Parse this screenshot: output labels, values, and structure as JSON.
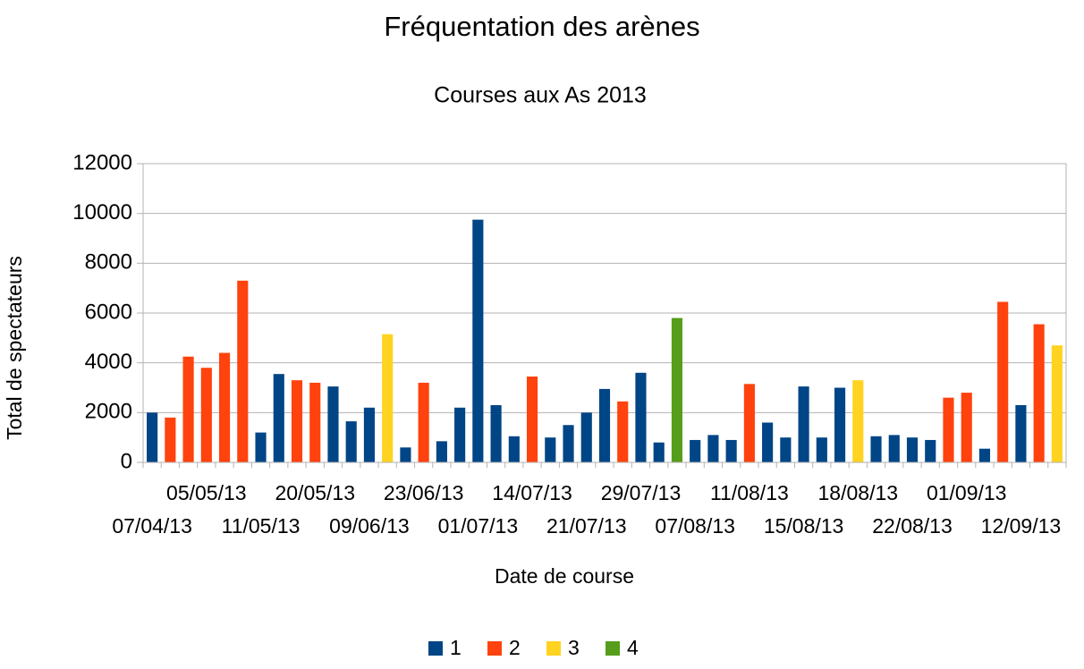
{
  "chart_data": {
    "type": "bar",
    "title": "Fréquentation des arènes",
    "subtitle": "Courses aux As 2013",
    "x_label": "Date de course",
    "y_label": "Total de spectateurs",
    "categories": [
      "07/04/13",
      null,
      null,
      "05/05/13",
      null,
      null,
      "11/05/13",
      null,
      null,
      "20/05/13",
      null,
      null,
      "09/06/13",
      null,
      null,
      "23/06/13",
      null,
      null,
      "01/07/13",
      null,
      null,
      "14/07/13",
      null,
      null,
      "21/07/13",
      null,
      null,
      "29/07/13",
      null,
      null,
      "07/08/13",
      null,
      null,
      "11/08/13",
      null,
      null,
      "15/08/13",
      null,
      null,
      "18/08/13",
      null,
      null,
      "22/08/13",
      null,
      null,
      "01/09/13",
      null,
      null,
      "12/09/13",
      null,
      null
    ],
    "series": [
      {
        "name": "1",
        "color": "#004586",
        "values": [
          2000,
          null,
          null,
          null,
          null,
          null,
          1200,
          3550,
          null,
          null,
          3050,
          1650,
          2200,
          null,
          600,
          null,
          850,
          2200,
          9750,
          2300,
          1050,
          null,
          1000,
          1500,
          2000,
          2950,
          null,
          3600,
          800,
          null,
          900,
          1100,
          900,
          null,
          1600,
          1000,
          3050,
          1000,
          3000,
          null,
          1050,
          1100,
          1000,
          900,
          null,
          null,
          550,
          null,
          2300,
          null,
          null
        ]
      },
      {
        "name": "2",
        "color": "#ff420e",
        "values": [
          null,
          1800,
          4250,
          3800,
          4400,
          7300,
          null,
          null,
          3300,
          3200,
          null,
          null,
          null,
          null,
          null,
          3200,
          null,
          null,
          null,
          null,
          null,
          3450,
          null,
          null,
          null,
          null,
          2450,
          null,
          null,
          null,
          null,
          null,
          null,
          3150,
          null,
          null,
          null,
          null,
          null,
          null,
          null,
          null,
          null,
          null,
          2600,
          2800,
          null,
          6450,
          null,
          5550,
          null
        ]
      },
      {
        "name": "3",
        "color": "#ffd320",
        "values": [
          null,
          null,
          null,
          null,
          null,
          null,
          null,
          null,
          null,
          null,
          null,
          null,
          null,
          5150,
          null,
          null,
          null,
          null,
          null,
          null,
          null,
          null,
          null,
          null,
          null,
          null,
          null,
          null,
          null,
          null,
          null,
          null,
          null,
          null,
          null,
          null,
          null,
          null,
          null,
          3300,
          null,
          null,
          null,
          null,
          null,
          null,
          null,
          null,
          null,
          null,
          4700
        ]
      },
      {
        "name": "4",
        "color": "#579d1c",
        "values": [
          null,
          null,
          null,
          null,
          null,
          null,
          null,
          null,
          null,
          null,
          null,
          null,
          null,
          null,
          null,
          null,
          null,
          null,
          null,
          null,
          null,
          null,
          null,
          null,
          null,
          null,
          null,
          null,
          null,
          5800,
          null,
          null,
          null,
          null,
          null,
          null,
          null,
          null,
          null,
          null,
          null,
          null,
          null,
          null,
          null,
          null,
          null,
          null,
          null,
          null,
          null
        ]
      }
    ],
    "ylim": [
      0,
      12000
    ],
    "yticks": [
      0,
      2000,
      4000,
      6000,
      8000,
      10000,
      12000
    ],
    "grid": true,
    "legend": "bottom"
  }
}
